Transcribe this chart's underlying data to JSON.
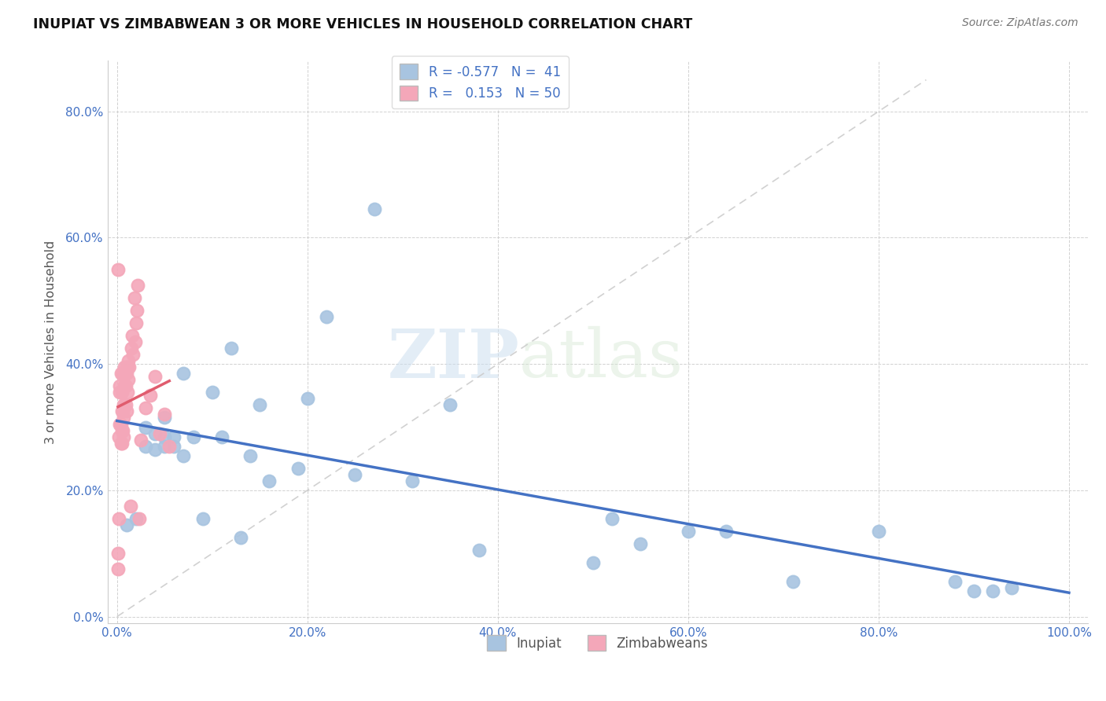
{
  "title": "INUPIAT VS ZIMBABWEAN 3 OR MORE VEHICLES IN HOUSEHOLD CORRELATION CHART",
  "source": "Source: ZipAtlas.com",
  "ylabel": "3 or more Vehicles in Household",
  "xlim": [
    -0.01,
    1.02
  ],
  "ylim": [
    -0.01,
    0.88
  ],
  "x_ticks": [
    0.0,
    0.2,
    0.4,
    0.6,
    0.8,
    1.0
  ],
  "x_tick_labels": [
    "0.0%",
    "20.0%",
    "40.0%",
    "60.0%",
    "80.0%",
    "100.0%"
  ],
  "y_ticks": [
    0.0,
    0.2,
    0.4,
    0.6,
    0.8
  ],
  "y_tick_labels": [
    "0.0%",
    "20.0%",
    "40.0%",
    "60.0%",
    "80.0%"
  ],
  "inupiat_color": "#a8c4e0",
  "zimbabwean_color": "#f4a7b9",
  "inupiat_line_color": "#4472c4",
  "zimbabwean_line_color": "#e05c6e",
  "R_inupiat": -0.577,
  "N_inupiat": 41,
  "R_zimbabwean": 0.153,
  "N_zimbabwean": 50,
  "legend_label_inupiat": "Inupiat",
  "legend_label_zimbabwean": "Zimbabweans",
  "watermark_zip": "ZIP",
  "watermark_atlas": "atlas",
  "inupiat_x": [
    0.01,
    0.02,
    0.03,
    0.03,
    0.04,
    0.04,
    0.05,
    0.05,
    0.05,
    0.06,
    0.06,
    0.07,
    0.07,
    0.08,
    0.09,
    0.1,
    0.11,
    0.12,
    0.13,
    0.14,
    0.15,
    0.16,
    0.19,
    0.2,
    0.22,
    0.25,
    0.27,
    0.31,
    0.35,
    0.38,
    0.5,
    0.52,
    0.55,
    0.6,
    0.64,
    0.71,
    0.8,
    0.88,
    0.9,
    0.92,
    0.94
  ],
  "inupiat_y": [
    0.145,
    0.155,
    0.27,
    0.3,
    0.265,
    0.29,
    0.27,
    0.285,
    0.315,
    0.27,
    0.285,
    0.255,
    0.385,
    0.285,
    0.155,
    0.355,
    0.285,
    0.425,
    0.125,
    0.255,
    0.335,
    0.215,
    0.235,
    0.345,
    0.475,
    0.225,
    0.645,
    0.215,
    0.335,
    0.105,
    0.085,
    0.155,
    0.115,
    0.135,
    0.135,
    0.055,
    0.135,
    0.055,
    0.04,
    0.04,
    0.045
  ],
  "zimbabwean_x": [
    0.001,
    0.001,
    0.001,
    0.002,
    0.002,
    0.003,
    0.003,
    0.003,
    0.004,
    0.004,
    0.004,
    0.005,
    0.005,
    0.005,
    0.005,
    0.006,
    0.006,
    0.006,
    0.007,
    0.007,
    0.007,
    0.008,
    0.008,
    0.009,
    0.009,
    0.01,
    0.01,
    0.01,
    0.011,
    0.011,
    0.012,
    0.012,
    0.013,
    0.014,
    0.015,
    0.016,
    0.017,
    0.018,
    0.019,
    0.02,
    0.021,
    0.022,
    0.023,
    0.025,
    0.03,
    0.035,
    0.04,
    0.045,
    0.05,
    0.055
  ],
  "zimbabwean_y": [
    0.075,
    0.1,
    0.55,
    0.155,
    0.285,
    0.305,
    0.355,
    0.365,
    0.275,
    0.305,
    0.385,
    0.275,
    0.295,
    0.325,
    0.355,
    0.295,
    0.325,
    0.385,
    0.315,
    0.335,
    0.285,
    0.365,
    0.395,
    0.335,
    0.365,
    0.385,
    0.325,
    0.395,
    0.355,
    0.395,
    0.375,
    0.405,
    0.395,
    0.175,
    0.425,
    0.445,
    0.415,
    0.505,
    0.435,
    0.465,
    0.485,
    0.525,
    0.155,
    0.28,
    0.33,
    0.35,
    0.38,
    0.29,
    0.32,
    0.27
  ]
}
